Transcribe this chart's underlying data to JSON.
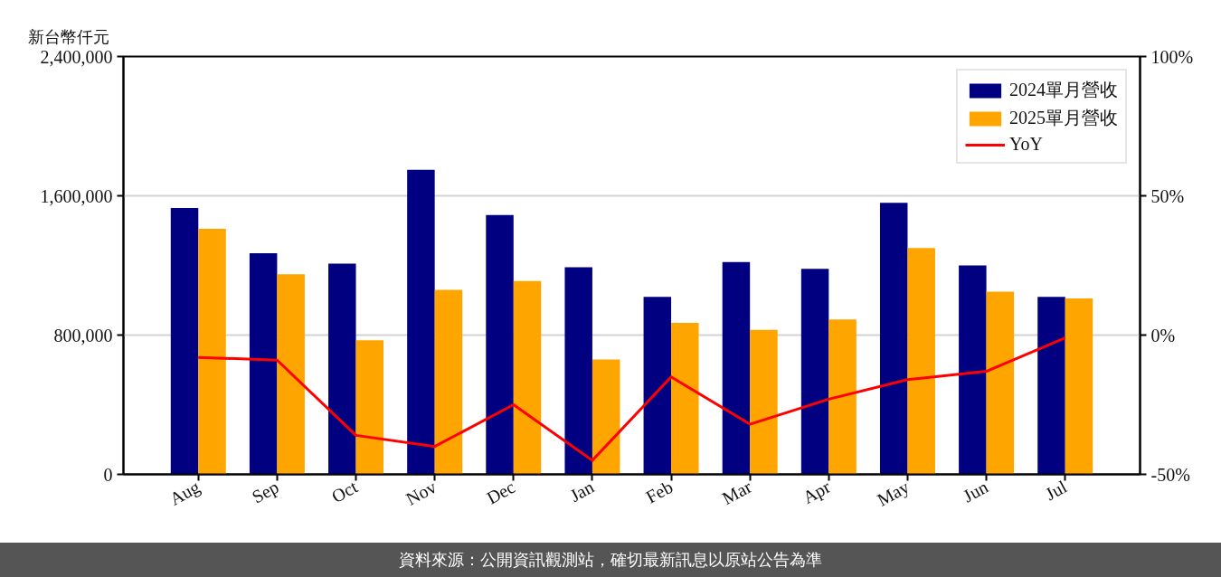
{
  "chart_data": {
    "type": "bar",
    "ylabel": "新台幣仟元",
    "categories": [
      "Aug",
      "Sep",
      "Oct",
      "Nov",
      "Dec",
      "Jan",
      "Feb",
      "Mar",
      "Apr",
      "May",
      "Jun",
      "Jul"
    ],
    "series": [
      {
        "name": "2024單月營收",
        "color": "#000080",
        "values": [
          1530000,
          1270000,
          1210000,
          1750000,
          1490000,
          1190000,
          1020000,
          1220000,
          1180000,
          1560000,
          1200000,
          1020000
        ]
      },
      {
        "name": "2025單月營收",
        "color": "#ffa500",
        "values": [
          1410000,
          1150000,
          770000,
          1060000,
          1110000,
          660000,
          870000,
          830000,
          890000,
          1300000,
          1050000,
          1010000
        ]
      },
      {
        "name": "YoY",
        "type": "line",
        "axis": "y2",
        "color": "#ff0000",
        "values": [
          -8,
          -9,
          -36,
          -40,
          -25,
          -45,
          -15,
          -32,
          -23,
          -16,
          -13,
          -1
        ]
      }
    ],
    "ylim": [
      0,
      2400000
    ],
    "yticks": [
      {
        "value": 0,
        "label": "0"
      },
      {
        "value": 800000,
        "label": "800,000"
      },
      {
        "value": 1600000,
        "label": "1,600,000"
      },
      {
        "value": 2400000,
        "label": "2,400,000"
      }
    ],
    "y2lim": [
      -50,
      100
    ],
    "y2ticks": [
      {
        "value": -50,
        "label": "-50%"
      },
      {
        "value": 0,
        "label": "0%"
      },
      {
        "value": 50,
        "label": "50%"
      },
      {
        "value": 100,
        "label": "100%"
      }
    ],
    "grid": "y",
    "legend": "top right",
    "annotations": [
      "資料來源：公開資訊觀測站，確切最新訊息以原站公告為準"
    ]
  }
}
